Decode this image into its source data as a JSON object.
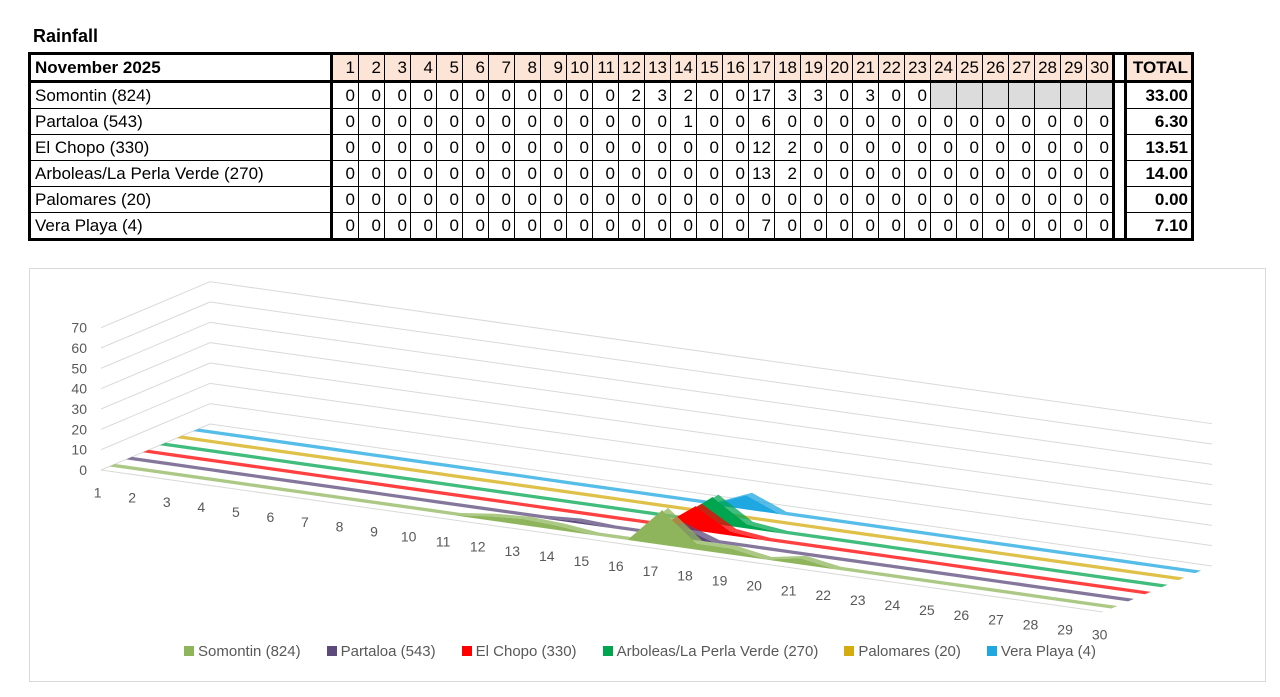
{
  "title": "Rainfall",
  "table": {
    "header_label": "November 2025",
    "total_label": "TOTAL",
    "days": [
      1,
      2,
      3,
      4,
      5,
      6,
      7,
      8,
      9,
      10,
      11,
      12,
      13,
      14,
      15,
      16,
      17,
      18,
      19,
      20,
      21,
      22,
      23,
      24,
      25,
      26,
      27,
      28,
      29,
      30
    ],
    "rows": [
      {
        "name": "Somontin (824)",
        "values": [
          0,
          0,
          0,
          0,
          0,
          0,
          0,
          0,
          0,
          0,
          0,
          2,
          3,
          2,
          0,
          0,
          17,
          3,
          3,
          0,
          3,
          0,
          0,
          null,
          null,
          null,
          null,
          null,
          null,
          null
        ],
        "total": "33.00"
      },
      {
        "name": "Partaloa (543)",
        "values": [
          0,
          0,
          0,
          0,
          0,
          0,
          0,
          0,
          0,
          0,
          0,
          0,
          0,
          1,
          0,
          0,
          6,
          0,
          0,
          0,
          0,
          0,
          0,
          0,
          0,
          0,
          0,
          0,
          0,
          0
        ],
        "total": "6.30"
      },
      {
        "name": "El Chopo (330)",
        "values": [
          0,
          0,
          0,
          0,
          0,
          0,
          0,
          0,
          0,
          0,
          0,
          0,
          0,
          0,
          0,
          0,
          12,
          2,
          0,
          0,
          0,
          0,
          0,
          0,
          0,
          0,
          0,
          0,
          0,
          0
        ],
        "total": "13.51"
      },
      {
        "name": "Arboleas/La Perla Verde (270)",
        "values": [
          0,
          0,
          0,
          0,
          0,
          0,
          0,
          0,
          0,
          0,
          0,
          0,
          0,
          0,
          0,
          0,
          13,
          2,
          0,
          0,
          0,
          0,
          0,
          0,
          0,
          0,
          0,
          0,
          0,
          0
        ],
        "total": "14.00"
      },
      {
        "name": "Palomares (20)",
        "values": [
          0,
          0,
          0,
          0,
          0,
          0,
          0,
          0,
          0,
          0,
          0,
          0,
          0,
          0,
          0,
          0,
          0,
          0,
          0,
          0,
          0,
          0,
          0,
          0,
          0,
          0,
          0,
          0,
          0,
          0
        ],
        "total": "0.00"
      },
      {
        "name": "Vera Playa (4)",
        "values": [
          0,
          0,
          0,
          0,
          0,
          0,
          0,
          0,
          0,
          0,
          0,
          0,
          0,
          0,
          0,
          0,
          7,
          0,
          0,
          0,
          0,
          0,
          0,
          0,
          0,
          0,
          0,
          0,
          0,
          0
        ],
        "total": "7.10"
      }
    ]
  },
  "chart_data": {
    "type": "area",
    "x": [
      1,
      2,
      3,
      4,
      5,
      6,
      7,
      8,
      9,
      10,
      11,
      12,
      13,
      14,
      15,
      16,
      17,
      18,
      19,
      20,
      21,
      22,
      23,
      24,
      25,
      26,
      27,
      28,
      29,
      30
    ],
    "y_ticks": [
      0,
      10,
      20,
      30,
      40,
      50,
      60,
      70
    ],
    "ylim": [
      0,
      70
    ],
    "grid": true,
    "legend_position": "bottom",
    "series": [
      {
        "name": "Somontin (824)",
        "color": "#8fb55c",
        "values": [
          0,
          0,
          0,
          0,
          0,
          0,
          0,
          0,
          0,
          0,
          0,
          2,
          3,
          2,
          0,
          0,
          17,
          3,
          3,
          0,
          3,
          0,
          0,
          0,
          0,
          0,
          0,
          0,
          0,
          0
        ]
      },
      {
        "name": "Partaloa (543)",
        "color": "#5b4a7a",
        "values": [
          0,
          0,
          0,
          0,
          0,
          0,
          0,
          0,
          0,
          0,
          0,
          0,
          0,
          1,
          0,
          0,
          6,
          0,
          0,
          0,
          0,
          0,
          0,
          0,
          0,
          0,
          0,
          0,
          0,
          0
        ]
      },
      {
        "name": "El Chopo (330)",
        "color": "#ff0000",
        "values": [
          0,
          0,
          0,
          0,
          0,
          0,
          0,
          0,
          0,
          0,
          0,
          0,
          0,
          0,
          0,
          0,
          12,
          2,
          0,
          0,
          0,
          0,
          0,
          0,
          0,
          0,
          0,
          0,
          0,
          0
        ]
      },
      {
        "name": "Arboleas/La Perla Verde (270)",
        "color": "#00a550",
        "values": [
          0,
          0,
          0,
          0,
          0,
          0,
          0,
          0,
          0,
          0,
          0,
          0,
          0,
          0,
          0,
          0,
          13,
          2,
          0,
          0,
          0,
          0,
          0,
          0,
          0,
          0,
          0,
          0,
          0,
          0
        ]
      },
      {
        "name": "Palomares (20)",
        "color": "#d4ac0d",
        "values": [
          0,
          0,
          0,
          0,
          0,
          0,
          0,
          0,
          0,
          0,
          0,
          0,
          0,
          0,
          0,
          0,
          0,
          0,
          0,
          0,
          0,
          0,
          0,
          0,
          0,
          0,
          0,
          0,
          0,
          0
        ]
      },
      {
        "name": "Vera Playa (4)",
        "color": "#1ea7e1",
        "values": [
          0,
          0,
          0,
          0,
          0,
          0,
          0,
          0,
          0,
          0,
          0,
          0,
          0,
          0,
          0,
          0,
          7,
          0,
          0,
          0,
          0,
          0,
          0,
          0,
          0,
          0,
          0,
          0,
          0,
          0
        ]
      }
    ]
  }
}
